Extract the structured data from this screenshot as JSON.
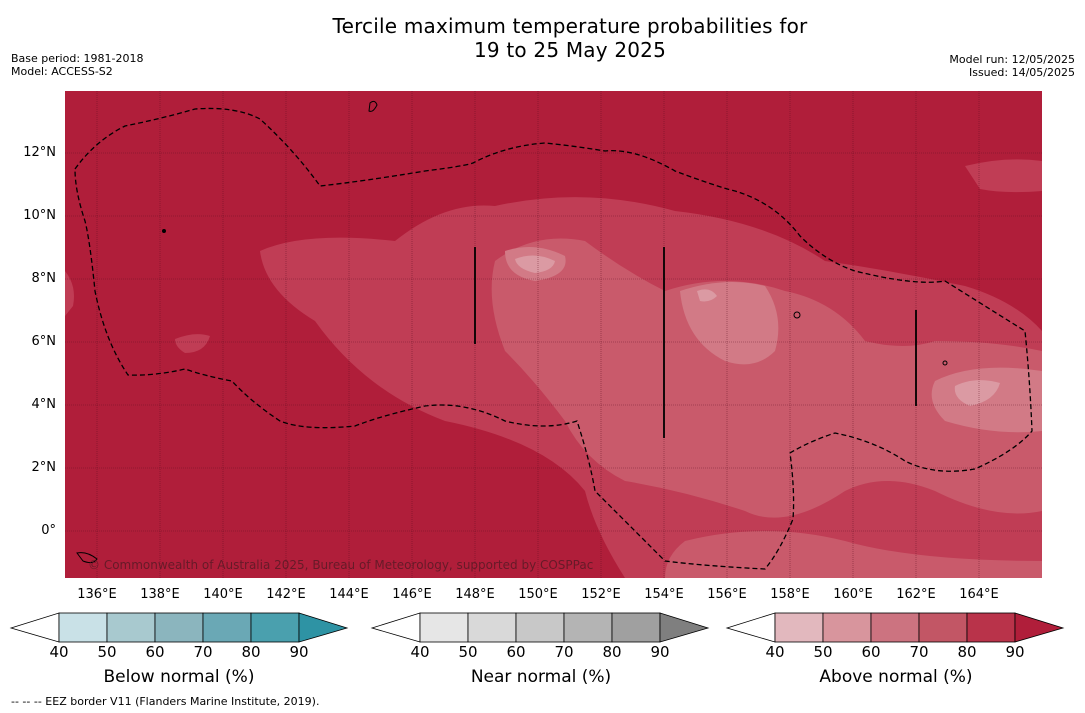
{
  "title": {
    "line1": "Tercile maximum temperature probabilities for",
    "line2": "19 to 25 May 2025"
  },
  "info_left": {
    "base_period": "Base period: 1981-2018",
    "model": "Model: ACCESS-S2"
  },
  "info_right": {
    "model_run": "Model run: 12/05/2025",
    "issued": "Issued: 14/05/2025"
  },
  "map": {
    "lat_labels": [
      "12°N",
      "10°N",
      "8°N",
      "6°N",
      "4°N",
      "2°N",
      "0°"
    ],
    "lon_labels": [
      "136°E",
      "138°E",
      "140°E",
      "142°E",
      "144°E",
      "146°E",
      "148°E",
      "150°E",
      "152°E",
      "154°E",
      "156°E",
      "158°E",
      "160°E",
      "162°E",
      "164°E"
    ],
    "copyright": "© Commonwealth of Australia 2025, Bureau of Meteorology, supported by COSPPac",
    "colors": {
      "above_90": "#b01e3a",
      "above_80": "#c03d55",
      "above_70": "#c95a6b",
      "above_60": "#d27a86",
      "above_50": "#db9aa3",
      "eez_border": "#000000"
    }
  },
  "colorbars": [
    {
      "title": "Below normal (%)",
      "ticks": [
        "40",
        "50",
        "60",
        "70",
        "80",
        "90"
      ],
      "colors": [
        "#c9e1e7",
        "#a8c9cf",
        "#8bb5be",
        "#6aa8b5",
        "#4aa0ae",
        "#2e93a4"
      ]
    },
    {
      "title": "Near normal (%)",
      "ticks": [
        "40",
        "50",
        "60",
        "70",
        "80",
        "90"
      ],
      "colors": [
        "#e6e6e6",
        "#d9d9d9",
        "#c8c8c8",
        "#b4b4b4",
        "#a0a0a0",
        "#7f7f7f"
      ]
    },
    {
      "title": "Above normal (%)",
      "ticks": [
        "40",
        "50",
        "60",
        "70",
        "80",
        "90"
      ],
      "colors": [
        "#e2b8be",
        "#d8959d",
        "#cc7380",
        "#c25665",
        "#b9334a",
        "#b01e3a"
      ]
    }
  ],
  "footer": "--  --  -- EEZ border V11 (Flanders Marine Institute, 2019)."
}
